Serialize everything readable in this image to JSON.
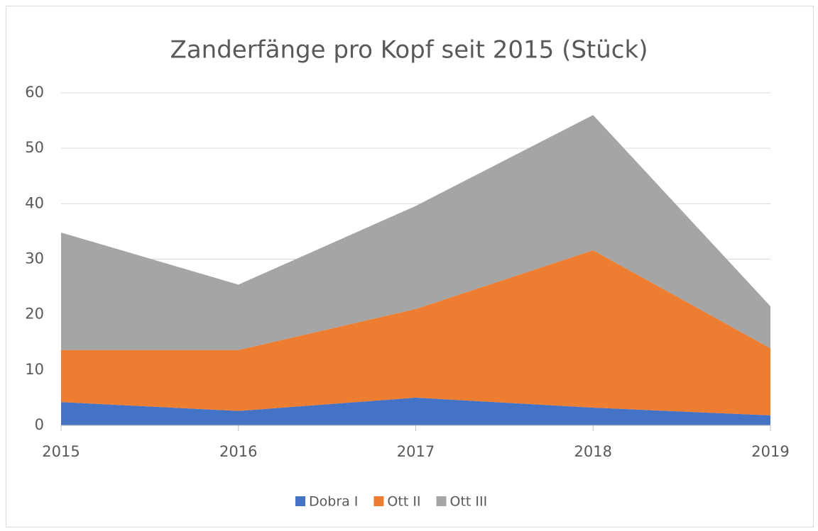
{
  "chart_data": {
    "type": "area",
    "stacked": true,
    "title": "Zanderfänge pro Kopf seit 2015 (Stück)",
    "categories": [
      "2015",
      "2016",
      "2017",
      "2018",
      "2019"
    ],
    "series": [
      {
        "name": "Dobra I",
        "color": "#4472c4",
        "values": [
          4.2,
          2.6,
          5.0,
          3.2,
          1.8
        ]
      },
      {
        "name": "Ott II",
        "color": "#ed7d31",
        "values": [
          9.4,
          11.0,
          16.0,
          28.4,
          12.1
        ]
      },
      {
        "name": "Ott III",
        "color": "#a5a5a5",
        "values": [
          21.2,
          11.8,
          18.6,
          24.4,
          7.6
        ]
      }
    ],
    "ylim": [
      0,
      60
    ],
    "yticks": [
      0,
      10,
      20,
      30,
      40,
      50,
      60
    ],
    "grid": true,
    "legend": "bottom"
  }
}
